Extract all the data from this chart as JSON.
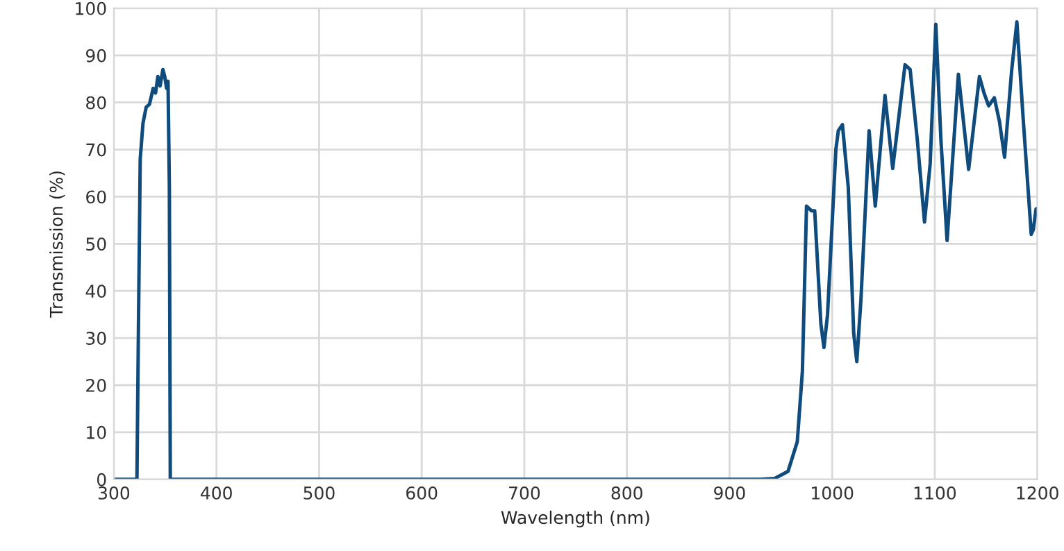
{
  "chart_data": {
    "type": "line",
    "xlabel": "Wavelength (nm)",
    "ylabel": "Transmission (%)",
    "xlim": [
      300,
      1200
    ],
    "xticks": [
      300,
      400,
      500,
      600,
      700,
      800,
      900,
      1000,
      1100,
      1200
    ],
    "ylim": [
      0,
      100
    ],
    "yticks": [
      0,
      10,
      20,
      30,
      40,
      50,
      60,
      70,
      80,
      90,
      100
    ],
    "grid": true,
    "series": [
      {
        "color": "#0f4c7d",
        "x": [
          300,
          322.5,
          324,
          325.7,
          328.4,
          331.5,
          334.7,
          338.3,
          340.6,
          342.9,
          345.1,
          347.8,
          349.6,
          351.4,
          352.8,
          354.1,
          355,
          400,
          600,
          800,
          930,
          944,
          957,
          966,
          971,
          975,
          980,
          983,
          989,
          992,
          995.5,
          1003.6,
          1006,
          1010,
          1015.7,
          1021,
          1024,
          1028,
          1036,
          1042,
          1051.5,
          1059,
          1071,
          1076,
          1083,
          1090,
          1095.5,
          1101,
          1106,
          1112,
          1123,
          1133,
          1143.5,
          1148,
          1152.5,
          1158,
          1163,
          1168,
          1175,
          1180,
          1186,
          1194,
          1196,
          1198.7,
          1200
        ],
        "values": [
          0,
          0,
          33,
          68,
          75.6,
          79,
          79.6,
          83,
          82,
          85.5,
          83.5,
          87,
          85.5,
          83,
          84.5,
          62,
          0,
          0,
          0,
          0,
          0,
          0.2,
          1.7,
          8,
          23,
          58,
          57,
          57,
          33,
          28,
          35,
          70,
          74,
          75.3,
          62,
          31,
          25,
          38,
          74,
          58,
          81.5,
          66,
          88,
          87,
          72,
          54.6,
          67,
          96.6,
          72,
          50.7,
          86,
          65.8,
          85.5,
          82,
          79.3,
          81,
          76,
          68.4,
          87,
          97.1,
          77,
          52,
          53,
          57.4,
          57.5
        ]
      }
    ]
  }
}
